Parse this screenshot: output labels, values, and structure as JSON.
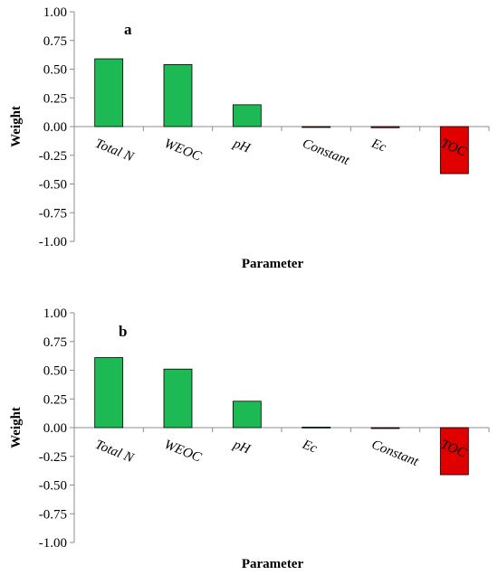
{
  "colors": {
    "positive": "#1db954",
    "negative": "#e00000",
    "edge": "#000000",
    "axis": "#8c8c8c"
  },
  "chart_data": [
    {
      "type": "bar",
      "panel_label": "a",
      "categories": [
        "Total N",
        "WEOC",
        "pH",
        "Constant",
        "Ec",
        "TOC"
      ],
      "values": [
        0.59,
        0.54,
        0.19,
        -0.005,
        -0.01,
        -0.41
      ],
      "xlabel": "Parameter",
      "ylabel": "Weight",
      "ylim": [
        -1.0,
        1.0
      ],
      "yticks": [
        "1.00",
        "0.75",
        "0.50",
        "0.25",
        "0.00",
        "-0.25",
        "-0.50",
        "-0.75",
        "-1.00"
      ],
      "grid": false
    },
    {
      "type": "bar",
      "panel_label": "b",
      "categories": [
        "Total N",
        "WEOC",
        "pH",
        "Ec",
        "Constant",
        "TOC"
      ],
      "values": [
        0.61,
        0.51,
        0.23,
        0.005,
        -0.005,
        -0.41
      ],
      "xlabel": "Parameter",
      "ylabel": "Weight",
      "ylim": [
        -1.0,
        1.0
      ],
      "yticks": [
        "1.00",
        "0.75",
        "0.50",
        "0.25",
        "0.00",
        "-0.25",
        "-0.50",
        "-0.75",
        "-1.00"
      ],
      "grid": false
    }
  ]
}
